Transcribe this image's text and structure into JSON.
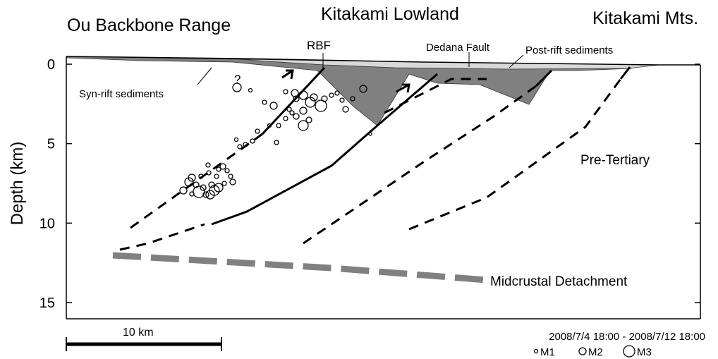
{
  "labels": {
    "ou": "Ou Backbone Range",
    "kitakami_lowland": "Kitakami Lowland",
    "kitakami_mts": "Kitakami Mts.",
    "rbf": "RBF",
    "dedana": "Dedana Fault",
    "post_rift": "Post-rift sediments",
    "syn_rift": "Syn-rift sediments",
    "question": "?",
    "pre_tertiary": "Pre-Tertiary",
    "midcrustal": "Midcrustal Detachment"
  },
  "axis": {
    "label": "Depth (km)",
    "ticks": [
      0,
      5,
      10,
      15
    ]
  },
  "scale_bar": "10 km",
  "period": "2008/7/4 18:00 - 2008/7/12 18:00",
  "legend": [
    "M1",
    "M2",
    "M3"
  ]
}
